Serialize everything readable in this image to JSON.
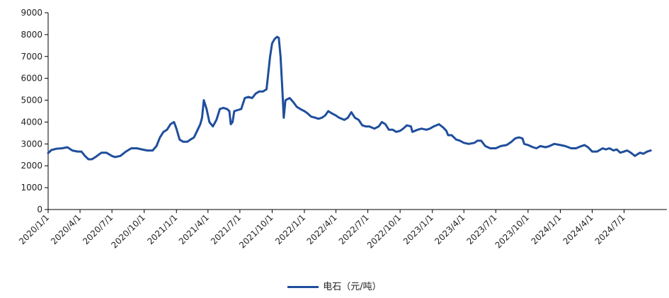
{
  "chart_data": {
    "type": "line",
    "title": "",
    "xlabel": "",
    "ylabel": "",
    "ylim": [
      0,
      9000
    ],
    "yticks": [
      0,
      1000,
      2000,
      3000,
      4000,
      5000,
      6000,
      7000,
      8000,
      9000
    ],
    "xlim": [
      "2020-01-01",
      "2024-10-31"
    ],
    "xticks": [
      "2020/1/1",
      "2020/4/1",
      "2020/7/1",
      "2020/10/1",
      "2021/1/1",
      "2021/4/1",
      "2021/7/1",
      "2021/10/1",
      "2022/1/1",
      "2022/4/1",
      "2022/7/1",
      "2022/10/1",
      "2023/1/1",
      "2023/4/1",
      "2023/7/1",
      "2023/10/1",
      "2024/1/1",
      "2024/4/1",
      "2024/7/1"
    ],
    "legend_position": "bottom-center",
    "grid": false,
    "colors": {
      "series": "#1f4e9c",
      "axis": "#000000"
    },
    "series": [
      {
        "name": "电石（元/吨）",
        "points": [
          [
            "2020-01-01",
            2580
          ],
          [
            "2020-01-10",
            2720
          ],
          [
            "2020-01-25",
            2780
          ],
          [
            "2020-02-10",
            2800
          ],
          [
            "2020-02-25",
            2850
          ],
          [
            "2020-03-10",
            2700
          ],
          [
            "2020-03-25",
            2650
          ],
          [
            "2020-04-05",
            2650
          ],
          [
            "2020-04-15",
            2450
          ],
          [
            "2020-04-25",
            2300
          ],
          [
            "2020-05-05",
            2300
          ],
          [
            "2020-05-15",
            2400
          ],
          [
            "2020-06-01",
            2600
          ],
          [
            "2020-06-15",
            2600
          ],
          [
            "2020-07-01",
            2450
          ],
          [
            "2020-07-10",
            2400
          ],
          [
            "2020-07-25",
            2450
          ],
          [
            "2020-08-10",
            2650
          ],
          [
            "2020-08-25",
            2800
          ],
          [
            "2020-09-10",
            2800
          ],
          [
            "2020-09-25",
            2750
          ],
          [
            "2020-10-10",
            2700
          ],
          [
            "2020-10-25",
            2700
          ],
          [
            "2020-11-05",
            2900
          ],
          [
            "2020-11-15",
            3300
          ],
          [
            "2020-11-25",
            3550
          ],
          [
            "2020-12-05",
            3650
          ],
          [
            "2020-12-15",
            3900
          ],
          [
            "2020-12-25",
            4000
          ],
          [
            "2021-01-01",
            3700
          ],
          [
            "2021-01-10",
            3200
          ],
          [
            "2021-01-20",
            3100
          ],
          [
            "2021-02-01",
            3100
          ],
          [
            "2021-02-10",
            3200
          ],
          [
            "2021-02-20",
            3300
          ],
          [
            "2021-03-01",
            3600
          ],
          [
            "2021-03-10",
            3900
          ],
          [
            "2021-03-15",
            4200
          ],
          [
            "2021-03-20",
            5000
          ],
          [
            "2021-03-28",
            4600
          ],
          [
            "2021-04-05",
            4000
          ],
          [
            "2021-04-15",
            3800
          ],
          [
            "2021-04-25",
            4100
          ],
          [
            "2021-05-05",
            4600
          ],
          [
            "2021-05-15",
            4650
          ],
          [
            "2021-05-25",
            4600
          ],
          [
            "2021-06-01",
            4500
          ],
          [
            "2021-06-05",
            3900
          ],
          [
            "2021-06-10",
            4000
          ],
          [
            "2021-06-15",
            4500
          ],
          [
            "2021-06-25",
            4550
          ],
          [
            "2021-07-05",
            4600
          ],
          [
            "2021-07-15",
            5100
          ],
          [
            "2021-07-25",
            5150
          ],
          [
            "2021-08-05",
            5100
          ],
          [
            "2021-08-15",
            5300
          ],
          [
            "2021-08-25",
            5400
          ],
          [
            "2021-09-05",
            5400
          ],
          [
            "2021-09-15",
            5500
          ],
          [
            "2021-09-25",
            7000
          ],
          [
            "2021-10-01",
            7600
          ],
          [
            "2021-10-08",
            7800
          ],
          [
            "2021-10-15",
            7900
          ],
          [
            "2021-10-20",
            7850
          ],
          [
            "2021-10-25",
            7000
          ],
          [
            "2021-10-30",
            5500
          ],
          [
            "2021-11-03",
            4200
          ],
          [
            "2021-11-08",
            5000
          ],
          [
            "2021-11-20",
            5100
          ],
          [
            "2021-12-01",
            4900
          ],
          [
            "2021-12-10",
            4700
          ],
          [
            "2021-12-20",
            4600
          ],
          [
            "2022-01-01",
            4500
          ],
          [
            "2022-01-10",
            4400
          ],
          [
            "2022-01-20",
            4250
          ],
          [
            "2022-02-01",
            4200
          ],
          [
            "2022-02-10",
            4150
          ],
          [
            "2022-02-20",
            4200
          ],
          [
            "2022-03-01",
            4300
          ],
          [
            "2022-03-10",
            4500
          ],
          [
            "2022-03-20",
            4400
          ],
          [
            "2022-04-01",
            4300
          ],
          [
            "2022-04-10",
            4200
          ],
          [
            "2022-04-25",
            4100
          ],
          [
            "2022-05-05",
            4200
          ],
          [
            "2022-05-15",
            4450
          ],
          [
            "2022-05-25",
            4200
          ],
          [
            "2022-06-05",
            4100
          ],
          [
            "2022-06-15",
            3850
          ],
          [
            "2022-06-25",
            3800
          ],
          [
            "2022-07-05",
            3800
          ],
          [
            "2022-07-20",
            3700
          ],
          [
            "2022-08-01",
            3800
          ],
          [
            "2022-08-10",
            4000
          ],
          [
            "2022-08-20",
            3900
          ],
          [
            "2022-08-30",
            3650
          ],
          [
            "2022-09-10",
            3650
          ],
          [
            "2022-09-20",
            3550
          ],
          [
            "2022-10-01",
            3600
          ],
          [
            "2022-10-10",
            3700
          ],
          [
            "2022-10-20",
            3850
          ],
          [
            "2022-11-01",
            3800
          ],
          [
            "2022-11-05",
            3550
          ],
          [
            "2022-11-20",
            3650
          ],
          [
            "2022-12-01",
            3700
          ],
          [
            "2022-12-15",
            3650
          ],
          [
            "2022-12-25",
            3700
          ],
          [
            "2023-01-05",
            3800
          ],
          [
            "2023-01-20",
            3900
          ],
          [
            "2023-02-01",
            3750
          ],
          [
            "2023-02-10",
            3600
          ],
          [
            "2023-02-15",
            3400
          ],
          [
            "2023-02-25",
            3400
          ],
          [
            "2023-03-10",
            3200
          ],
          [
            "2023-03-20",
            3150
          ],
          [
            "2023-04-01",
            3050
          ],
          [
            "2023-04-15",
            3000
          ],
          [
            "2023-05-01",
            3050
          ],
          [
            "2023-05-10",
            3150
          ],
          [
            "2023-05-20",
            3150
          ],
          [
            "2023-06-01",
            2900
          ],
          [
            "2023-06-15",
            2800
          ],
          [
            "2023-07-01",
            2800
          ],
          [
            "2023-07-15",
            2900
          ],
          [
            "2023-08-01",
            2950
          ],
          [
            "2023-08-15",
            3100
          ],
          [
            "2023-08-25",
            3250
          ],
          [
            "2023-09-05",
            3300
          ],
          [
            "2023-09-15",
            3250
          ],
          [
            "2023-09-20",
            3000
          ],
          [
            "2023-10-01",
            2950
          ],
          [
            "2023-10-15",
            2850
          ],
          [
            "2023-10-25",
            2800
          ],
          [
            "2023-11-05",
            2900
          ],
          [
            "2023-11-20",
            2850
          ],
          [
            "2023-12-01",
            2900
          ],
          [
            "2023-12-15",
            3000
          ],
          [
            "2024-01-01",
            2950
          ],
          [
            "2024-01-15",
            2900
          ],
          [
            "2024-02-01",
            2800
          ],
          [
            "2024-02-15",
            2800
          ],
          [
            "2024-03-01",
            2900
          ],
          [
            "2024-03-10",
            2950
          ],
          [
            "2024-03-20",
            2850
          ],
          [
            "2024-04-01",
            2650
          ],
          [
            "2024-04-15",
            2650
          ],
          [
            "2024-05-01",
            2800
          ],
          [
            "2024-05-10",
            2750
          ],
          [
            "2024-05-20",
            2800
          ],
          [
            "2024-06-01",
            2700
          ],
          [
            "2024-06-10",
            2750
          ],
          [
            "2024-06-20",
            2600
          ],
          [
            "2024-07-01",
            2650
          ],
          [
            "2024-07-10",
            2700
          ],
          [
            "2024-07-20",
            2600
          ],
          [
            "2024-08-01",
            2450
          ],
          [
            "2024-08-15",
            2600
          ],
          [
            "2024-08-25",
            2550
          ],
          [
            "2024-09-05",
            2650
          ],
          [
            "2024-09-15",
            2700
          ]
        ]
      }
    ]
  }
}
